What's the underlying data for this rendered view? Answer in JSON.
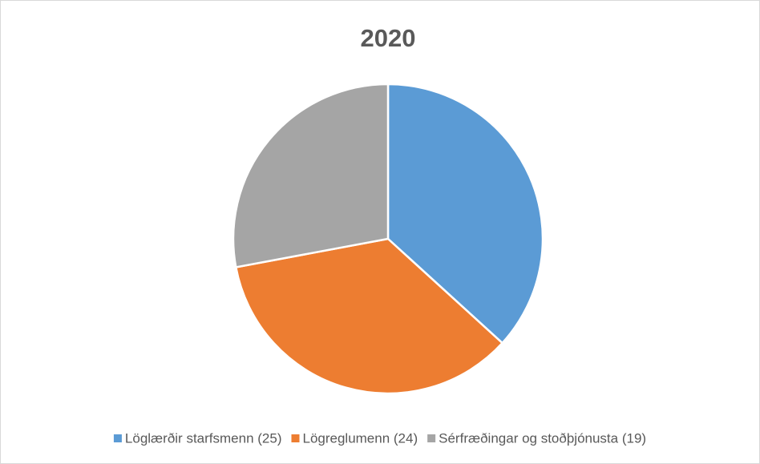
{
  "chart_data": {
    "type": "pie",
    "title": "2020",
    "categories": [
      "Löglærðir starfsmenn (25)",
      "Lögreglumenn (24)",
      "Sérfræðingar og stoðþjónusta (19)"
    ],
    "values": [
      25,
      24,
      19
    ],
    "colors": [
      "#5b9bd5",
      "#ed7d31",
      "#a5a5a5"
    ],
    "legend": "bottom"
  }
}
